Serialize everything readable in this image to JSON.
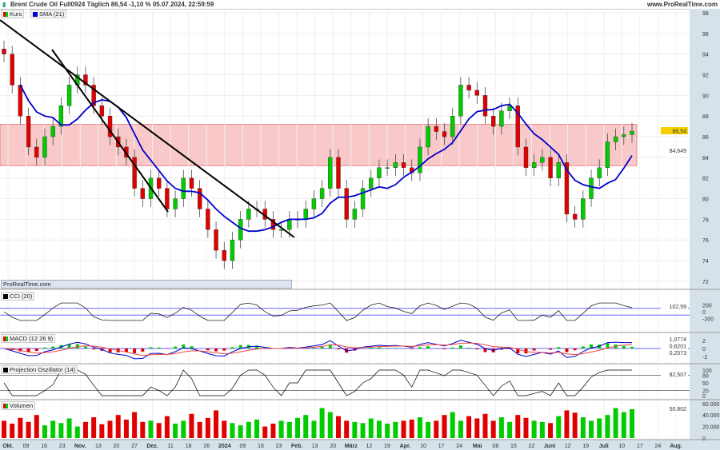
{
  "header": {
    "title": "Brent Crude Oil Full0924 Täglich 86,54 -1,10 % 05.07.2024, 22:59:59",
    "brand": "www.ProRealTime.com"
  },
  "legend": {
    "kurs": "Kurs",
    "sma": "SMA (21)",
    "watermark": "ProRealTime.com"
  },
  "panels": {
    "cci": "CCI (20)",
    "macd": "MACD (12 26 9)",
    "proj": "Projection Oszillator (14)",
    "vol": "Volumen"
  },
  "colors": {
    "up": "#00cc00",
    "down": "#e00000",
    "sma": "#0000cc",
    "zone": "#f9c8c8",
    "axis_bg": "#d6e2ea"
  },
  "chart_data": {
    "type": "candlestick",
    "ylim": [
      71,
      98
    ],
    "yticks": [
      "98",
      "96",
      "94",
      "92",
      "90",
      "88",
      "86",
      "84",
      "82",
      "80",
      "78",
      "76",
      "74",
      "72"
    ],
    "xticks": [
      "Okt.",
      "09",
      "16",
      "23",
      "Nov.",
      "13",
      "20",
      "27",
      "Dez.",
      "11",
      "18",
      "26",
      "2024",
      "09",
      "16",
      "23",
      "Feb.",
      "13",
      "20",
      "März",
      "12",
      "19",
      "Apr.",
      "10",
      "17",
      "24",
      "Mai",
      "08",
      "15",
      "22",
      "Juni",
      "12",
      "19",
      "Juli",
      "10",
      "17",
      "24",
      "Aug."
    ],
    "closes": [
      94,
      91,
      88,
      85,
      84,
      86,
      87,
      89,
      91,
      92,
      91,
      89,
      88,
      86,
      85,
      84,
      81,
      80,
      82,
      81,
      79,
      80,
      82,
      81,
      79,
      77,
      75,
      74,
      76,
      78,
      79,
      79,
      78,
      77,
      77,
      78,
      78,
      79,
      80,
      81,
      84,
      81,
      78,
      79,
      81,
      82,
      83,
      83,
      83.5,
      83,
      82.5,
      85,
      87,
      86.5,
      86,
      88,
      91,
      90.5,
      90,
      88,
      87,
      88.5,
      89,
      85,
      83,
      83.5,
      84,
      82,
      83.5,
      78.5,
      78,
      80,
      82,
      83,
      85.5,
      86,
      86.2,
      86.54
    ],
    "volumes": [
      30,
      25,
      35,
      28,
      40,
      22,
      30,
      26,
      34,
      20,
      28,
      36,
      24,
      30,
      40,
      32,
      45,
      28,
      30,
      26,
      38,
      25,
      30,
      42,
      28,
      35,
      48,
      30,
      26,
      22,
      28,
      32,
      20,
      25,
      30,
      28,
      35,
      40,
      30,
      52,
      45,
      38,
      30,
      28,
      26,
      34,
      30,
      25,
      28,
      30,
      32,
      36,
      28,
      30,
      40,
      45,
      30,
      38,
      34,
      42,
      30,
      36,
      28,
      40,
      35,
      30,
      28,
      26,
      38,
      48,
      44,
      36,
      30,
      34,
      40,
      52,
      45,
      50
    ],
    "last_price": "86,54",
    "sma_value": "84,649",
    "zone": [
      83.2,
      87.2
    ],
    "cci": {
      "ticks": [
        "200",
        "0",
        "-200"
      ],
      "last": "102,59"
    },
    "macd": {
      "ticks": [
        "2",
        "0",
        "-2"
      ],
      "values": [
        "1,0774",
        "0,8201",
        "0,2573"
      ]
    },
    "proj": {
      "ticks": [
        "100",
        "80",
        "50",
        "20",
        "0"
      ],
      "last": "82,507"
    },
    "vol": {
      "ticks": [
        "60.000",
        "40.000",
        "20.000",
        "0"
      ],
      "last": "50.802"
    }
  }
}
